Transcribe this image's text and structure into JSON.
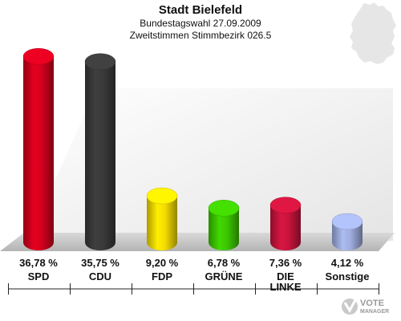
{
  "header": {
    "title": "Stadt Bielefeld",
    "subtitle1": "Bundestagswahl 27.09.2009",
    "subtitle2": "Zweitstimmen Stimmbezirk 026.5"
  },
  "logo": {
    "line1": "VOTE",
    "line2": "MANAGER"
  },
  "chart_data": {
    "type": "bar",
    "title": "Stadt Bielefeld",
    "categories": [
      "SPD",
      "CDU",
      "FDP",
      "GRÜNE",
      "DIE LINKE",
      "Sonstige"
    ],
    "values": [
      36.78,
      35.75,
      9.2,
      6.78,
      7.36,
      4.12
    ],
    "value_labels": [
      "36,78 %",
      "35,75 %",
      "9,20 %",
      "6,78 %",
      "7,36 %",
      "4,12 %"
    ],
    "colors": [
      "#d4001e",
      "#3a3a3a",
      "#f5dc00",
      "#3cc800",
      "#c8143c",
      "#a0aee0"
    ],
    "ylim": [
      0,
      40
    ],
    "grid": false,
    "legend": "none"
  }
}
